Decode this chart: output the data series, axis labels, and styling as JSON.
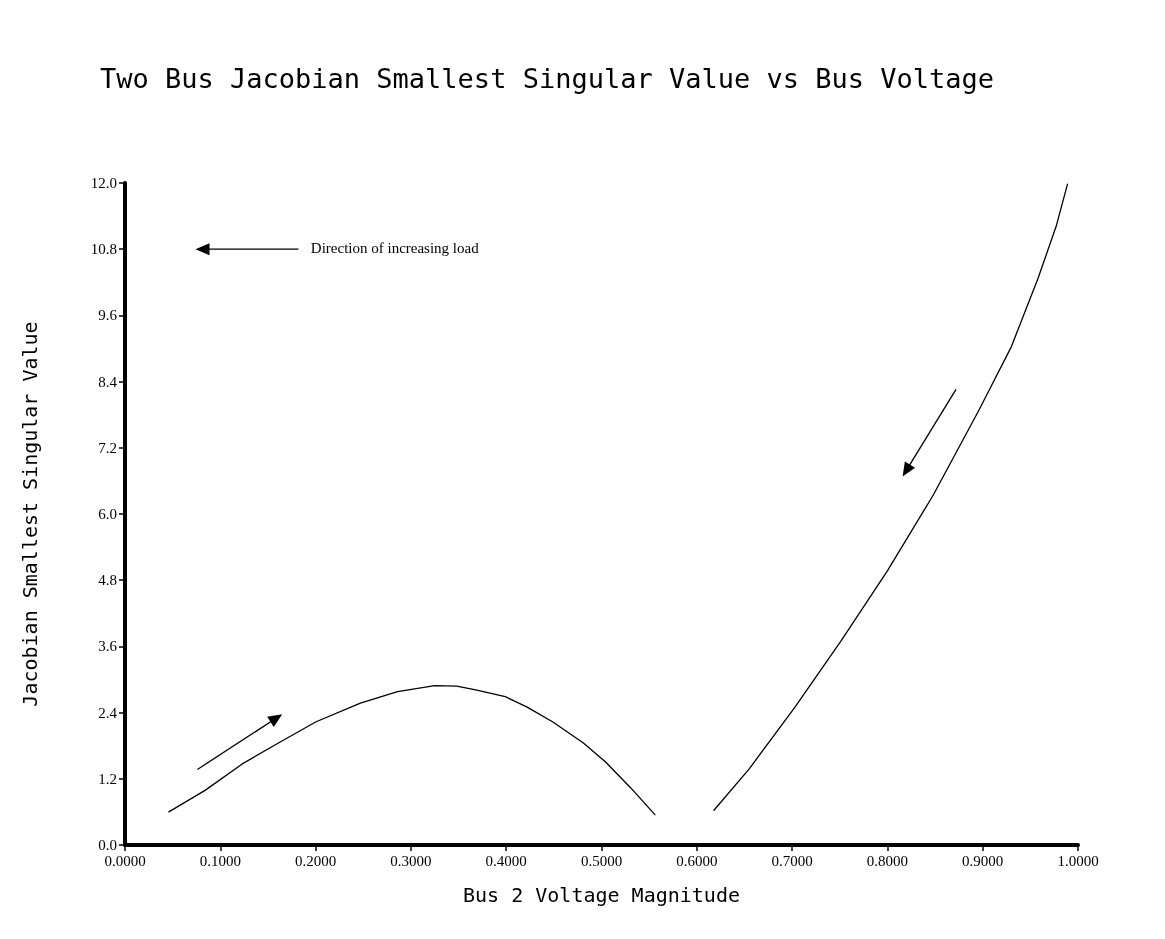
{
  "chart_data": {
    "type": "line",
    "title": "Two Bus Jacobian Smallest Singular Value vs Bus Voltage",
    "xlabel": "Bus 2 Voltage Magnitude",
    "ylabel": "Jacobian Smallest Singular Value",
    "annotations": [
      "Direction of increasing load"
    ],
    "series": [
      {
        "color": "#000000",
        "x": [
          0.046,
          0.084,
          0.123,
          0.161,
          0.2,
          0.247,
          0.286,
          0.325,
          0.348,
          0.368,
          0.399,
          0.422,
          0.449,
          0.481,
          0.504,
          0.531,
          0.556
        ],
        "values": [
          0.6,
          0.99,
          1.47,
          1.85,
          2.23,
          2.57,
          2.78,
          2.89,
          2.88,
          2.81,
          2.69,
          2.5,
          2.23,
          1.85,
          1.51,
          1.03,
          0.55
        ]
      },
      {
        "color": "#000000",
        "x": [
          0.618,
          0.655,
          0.703,
          0.751,
          0.8,
          0.848,
          0.896,
          0.93,
          0.958,
          0.977,
          0.989
        ],
        "values": [
          0.63,
          1.38,
          2.5,
          3.69,
          4.97,
          6.34,
          7.88,
          9.03,
          10.27,
          11.21,
          11.98
        ]
      }
    ],
    "xlim": [
      0,
      1
    ],
    "xticks": [
      {
        "value": 0,
        "label": "0.0000"
      },
      {
        "value": 0.1,
        "label": "0.1000"
      },
      {
        "value": 0.2,
        "label": "0.2000"
      },
      {
        "value": 0.3,
        "label": "0.3000"
      },
      {
        "value": 0.4,
        "label": "0.4000"
      },
      {
        "value": 0.5,
        "label": "0.5000"
      },
      {
        "value": 0.6,
        "label": "0.6000"
      },
      {
        "value": 0.7,
        "label": "0.7000"
      },
      {
        "value": 0.8,
        "label": "0.8000"
      },
      {
        "value": 0.9,
        "label": "0.9000"
      },
      {
        "value": 1,
        "label": "1.0000"
      }
    ],
    "ylim": [
      0,
      12
    ],
    "yticks": [
      {
        "value": 0,
        "label": "0.0"
      },
      {
        "value": 1.2,
        "label": "1.2"
      },
      {
        "value": 2.4,
        "label": "2.4"
      },
      {
        "value": 3.6,
        "label": "3.6"
      },
      {
        "value": 4.8,
        "label": "4.8"
      },
      {
        "value": 6,
        "label": "6.0"
      },
      {
        "value": 7.2,
        "label": "7.2"
      },
      {
        "value": 8.4,
        "label": "8.4"
      },
      {
        "value": 9.6,
        "label": "9.6"
      },
      {
        "value": 10.8,
        "label": "10.8"
      },
      {
        "value": 12,
        "label": "12.0"
      }
    ],
    "marker": "none",
    "line_style": "solid"
  }
}
